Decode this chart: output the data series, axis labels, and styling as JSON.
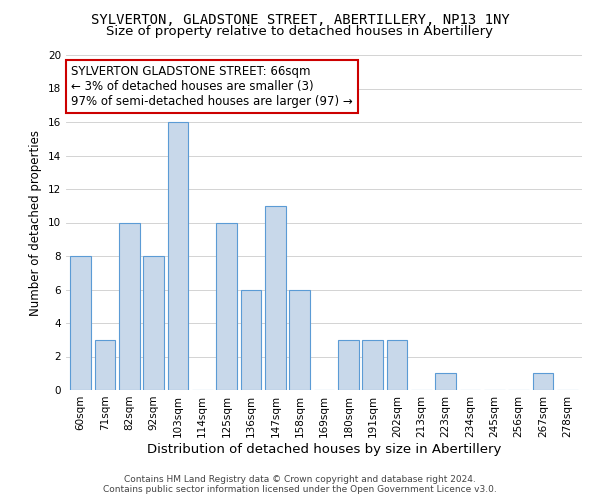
{
  "title": "SYLVERTON, GLADSTONE STREET, ABERTILLERY, NP13 1NY",
  "subtitle": "Size of property relative to detached houses in Abertillery",
  "xlabel": "Distribution of detached houses by size in Abertillery",
  "ylabel": "Number of detached properties",
  "bar_labels": [
    "60sqm",
    "71sqm",
    "82sqm",
    "92sqm",
    "103sqm",
    "114sqm",
    "125sqm",
    "136sqm",
    "147sqm",
    "158sqm",
    "169sqm",
    "180sqm",
    "191sqm",
    "202sqm",
    "213sqm",
    "223sqm",
    "234sqm",
    "245sqm",
    "256sqm",
    "267sqm",
    "278sqm"
  ],
  "bar_values": [
    8,
    3,
    10,
    8,
    16,
    0,
    10,
    6,
    11,
    6,
    0,
    3,
    3,
    3,
    0,
    1,
    0,
    0,
    0,
    1,
    0
  ],
  "bar_color": "#c8d8ea",
  "bar_edge_color": "#5b9bd5",
  "annotation_text": "SYLVERTON GLADSTONE STREET: 66sqm\n← 3% of detached houses are smaller (3)\n97% of semi-detached houses are larger (97) →",
  "annotation_box_color": "#ffffff",
  "annotation_box_edge_color": "#cc0000",
  "ylim": [
    0,
    20
  ],
  "yticks": [
    0,
    2,
    4,
    6,
    8,
    10,
    12,
    14,
    16,
    18,
    20
  ],
  "footer1": "Contains HM Land Registry data © Crown copyright and database right 2024.",
  "footer2": "Contains public sector information licensed under the Open Government Licence v3.0.",
  "bg_color": "#ffffff",
  "grid_color": "#cccccc",
  "title_fontsize": 10,
  "subtitle_fontsize": 9.5,
  "xlabel_fontsize": 9.5,
  "ylabel_fontsize": 8.5,
  "tick_fontsize": 7.5,
  "annotation_fontsize": 8.5,
  "footer_fontsize": 6.5
}
